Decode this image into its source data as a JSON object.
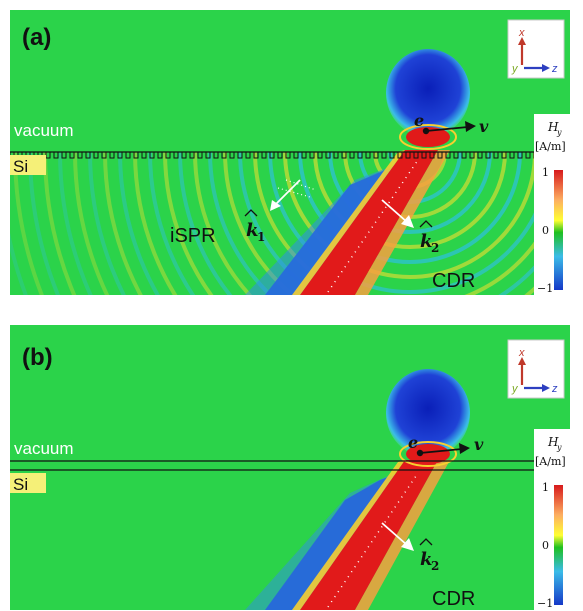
{
  "panels": [
    {
      "label": "(a)",
      "medium_top": "vacuum",
      "medium_bottom": "Si",
      "charge": "e",
      "velocity": "v",
      "k1_label": "k",
      "k1_sub": "1",
      "k2_label": "k",
      "k2_sub": "2",
      "ispr_label": "iSPR",
      "cdr_label": "CDR",
      "grating": true
    },
    {
      "label": "(b)",
      "medium_top": "vacuum",
      "medium_bottom": "Si",
      "charge": "e",
      "velocity": "v",
      "k2_label": "k",
      "k2_sub": "2",
      "cdr_label": "CDR",
      "grating": false
    }
  ],
  "axes": {
    "x": "x",
    "y": "y",
    "z": "z"
  },
  "colorbar": {
    "title": "H",
    "title_sub": "y",
    "unit": "[A/m]",
    "ticks": [
      "1",
      "0",
      "−1"
    ],
    "colors": [
      "#d7191c",
      "#fdae61",
      "#ffff33",
      "#1ec01e",
      "#3bbce8",
      "#1538c8"
    ]
  }
}
